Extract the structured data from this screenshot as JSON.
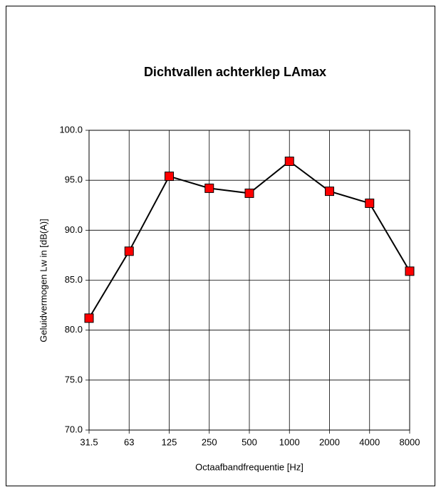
{
  "chart_data": {
    "type": "line",
    "title": "Dichtvallen achterklep LAmax",
    "xlabel": "Octaafbandfrequentie [Hz]",
    "ylabel": "Geluidvermogen Lw in  [dB(A)]",
    "categories": [
      "31.5",
      "63",
      "125",
      "250",
      "500",
      "1000",
      "2000",
      "4000",
      "8000"
    ],
    "series": [
      {
        "name": "LAmax",
        "color": "#000000",
        "marker_color": "#ff0000",
        "values": [
          81.2,
          87.9,
          95.4,
          94.2,
          93.7,
          96.9,
          93.9,
          92.7,
          85.9
        ]
      }
    ],
    "ylim": [
      70,
      100
    ],
    "yticks": [
      {
        "value": 70,
        "label": "70.0"
      },
      {
        "value": 75,
        "label": "75.0"
      },
      {
        "value": 80,
        "label": "80.0"
      },
      {
        "value": 85,
        "label": "85.0"
      },
      {
        "value": 90,
        "label": "90.0"
      },
      {
        "value": 95,
        "label": "95.0"
      },
      {
        "value": 100,
        "label": "100.0"
      }
    ],
    "grid": true
  }
}
